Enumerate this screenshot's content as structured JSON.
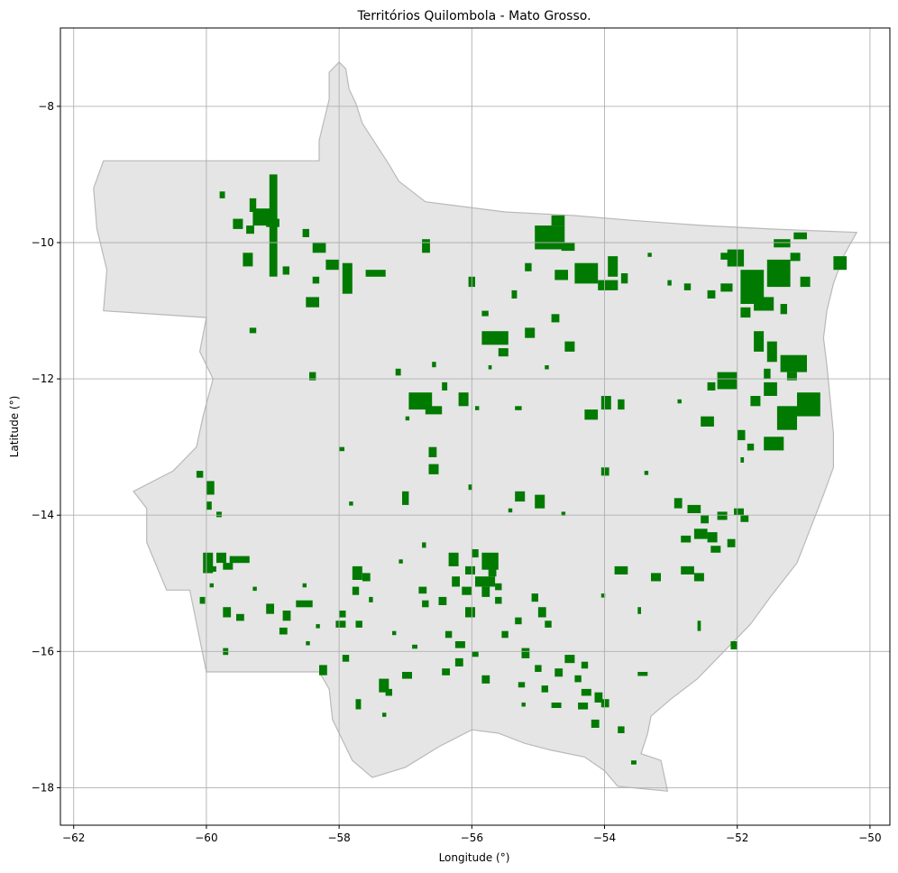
{
  "chart_data": {
    "type": "map",
    "title": "Territórios Quilombola - Mato Grosso.",
    "xlabel": "Longitude (°)",
    "ylabel": "Latitude (°)",
    "xlim": [
      -62.2,
      -49.7
    ],
    "ylim": [
      -18.55,
      -6.85
    ],
    "x_ticks": [
      -62,
      -60,
      -58,
      -56,
      -54,
      -52,
      -50
    ],
    "y_ticks": [
      -8,
      -10,
      -12,
      -14,
      -16,
      -18
    ],
    "x_tick_labels": [
      "−62",
      "−60",
      "−58",
      "−56",
      "−54",
      "−52",
      "−50"
    ],
    "y_tick_labels": [
      "−8",
      "−10",
      "−12",
      "−14",
      "−16",
      "−18"
    ],
    "grid": true,
    "colors": {
      "state_fill": "#e5e5e5",
      "state_edge": "#b9b9b9",
      "territory_fill": "#007a00",
      "grid": "#b0b0b0"
    },
    "state_boundary": [
      [
        -58.0,
        -7.35
      ],
      [
        -57.9,
        -7.45
      ],
      [
        -57.85,
        -7.75
      ],
      [
        -57.75,
        -7.95
      ],
      [
        -57.65,
        -8.25
      ],
      [
        -57.45,
        -8.55
      ],
      [
        -57.25,
        -8.85
      ],
      [
        -57.1,
        -9.1
      ],
      [
        -56.9,
        -9.25
      ],
      [
        -56.7,
        -9.4
      ],
      [
        -55.5,
        -9.55
      ],
      [
        -54.5,
        -9.6
      ],
      [
        -53.5,
        -9.68
      ],
      [
        -52.5,
        -9.75
      ],
      [
        -51.5,
        -9.8
      ],
      [
        -50.2,
        -9.85
      ],
      [
        -50.4,
        -10.2
      ],
      [
        -50.55,
        -10.6
      ],
      [
        -50.65,
        -11.0
      ],
      [
        -50.7,
        -11.4
      ],
      [
        -50.65,
        -11.8
      ],
      [
        -50.6,
        -12.3
      ],
      [
        -50.55,
        -12.8
      ],
      [
        -50.55,
        -13.3
      ],
      [
        -50.7,
        -13.7
      ],
      [
        -50.9,
        -14.2
      ],
      [
        -51.1,
        -14.7
      ],
      [
        -51.5,
        -15.2
      ],
      [
        -51.8,
        -15.6
      ],
      [
        -52.2,
        -16.0
      ],
      [
        -52.6,
        -16.4
      ],
      [
        -53.0,
        -16.7
      ],
      [
        -53.3,
        -16.95
      ],
      [
        -53.35,
        -17.2
      ],
      [
        -53.45,
        -17.5
      ],
      [
        -53.15,
        -17.6
      ],
      [
        -53.05,
        -18.05
      ],
      [
        -53.8,
        -17.98
      ],
      [
        -54.0,
        -17.75
      ],
      [
        -54.3,
        -17.55
      ],
      [
        -54.8,
        -17.45
      ],
      [
        -55.2,
        -17.35
      ],
      [
        -55.6,
        -17.2
      ],
      [
        -56.0,
        -17.15
      ],
      [
        -56.5,
        -17.4
      ],
      [
        -57.0,
        -17.7
      ],
      [
        -57.5,
        -17.85
      ],
      [
        -57.8,
        -17.6
      ],
      [
        -57.95,
        -17.3
      ],
      [
        -58.1,
        -17.0
      ],
      [
        -58.15,
        -16.55
      ],
      [
        -58.3,
        -16.3
      ],
      [
        -60.0,
        -16.3
      ],
      [
        -60.25,
        -15.1
      ],
      [
        -60.6,
        -15.1
      ],
      [
        -60.9,
        -14.4
      ],
      [
        -60.9,
        -13.9
      ],
      [
        -61.1,
        -13.65
      ],
      [
        -60.5,
        -13.35
      ],
      [
        -60.15,
        -13.0
      ],
      [
        -60.05,
        -12.55
      ],
      [
        -59.9,
        -12.0
      ],
      [
        -60.1,
        -11.6
      ],
      [
        -60.0,
        -11.1
      ],
      [
        -61.55,
        -11.0
      ],
      [
        -61.5,
        -10.4
      ],
      [
        -61.65,
        -9.8
      ],
      [
        -61.7,
        -9.2
      ],
      [
        -61.55,
        -8.8
      ],
      [
        -58.3,
        -8.8
      ],
      [
        -58.3,
        -8.5
      ],
      [
        -58.15,
        -7.9
      ],
      [
        -58.15,
        -7.5
      ]
    ],
    "territories": [
      [
        -59.05,
        -9.0,
        0.12,
        1.5
      ],
      [
        -59.3,
        -9.5,
        0.3,
        0.25
      ],
      [
        -59.6,
        -9.65,
        0.15,
        0.15
      ],
      [
        -59.4,
        -9.75,
        0.12,
        0.12
      ],
      [
        -59.8,
        -9.25,
        0.08,
        0.1
      ],
      [
        -59.35,
        -9.35,
        0.1,
        0.2
      ],
      [
        -59.1,
        -9.65,
        0.2,
        0.12
      ],
      [
        -59.45,
        -10.15,
        0.15,
        0.2
      ],
      [
        -58.4,
        -10.0,
        0.2,
        0.15
      ],
      [
        -58.55,
        -9.8,
        0.1,
        0.12
      ],
      [
        -57.95,
        -10.3,
        0.15,
        0.45
      ],
      [
        -58.2,
        -10.25,
        0.2,
        0.15
      ],
      [
        -57.6,
        -10.4,
        0.3,
        0.1
      ],
      [
        -58.85,
        -10.35,
        0.1,
        0.12
      ],
      [
        -58.4,
        -10.5,
        0.1,
        0.1
      ],
      [
        -58.5,
        -10.8,
        0.2,
        0.15
      ],
      [
        -59.35,
        -11.25,
        0.1,
        0.08
      ],
      [
        -58.45,
        -11.9,
        0.1,
        0.12
      ],
      [
        -57.15,
        -11.85,
        0.08,
        0.1
      ],
      [
        -55.85,
        -11.3,
        0.4,
        0.2
      ],
      [
        -55.6,
        -11.55,
        0.15,
        0.12
      ],
      [
        -55.85,
        -11.0,
        0.1,
        0.08
      ],
      [
        -56.05,
        -10.5,
        0.1,
        0.15
      ],
      [
        -56.75,
        -9.95,
        0.12,
        0.2
      ],
      [
        -55.05,
        -9.75,
        0.45,
        0.35
      ],
      [
        -54.8,
        -9.6,
        0.2,
        0.15
      ],
      [
        -54.45,
        -10.3,
        0.35,
        0.3
      ],
      [
        -54.1,
        -10.55,
        0.3,
        0.15
      ],
      [
        -54.75,
        -10.4,
        0.2,
        0.15
      ],
      [
        -55.2,
        -10.3,
        0.1,
        0.12
      ],
      [
        -55.4,
        -10.7,
        0.08,
        0.12
      ],
      [
        -54.65,
        -10.0,
        0.2,
        0.12
      ],
      [
        -53.95,
        -10.2,
        0.15,
        0.3
      ],
      [
        -53.75,
        -10.45,
        0.1,
        0.15
      ],
      [
        -55.2,
        -11.25,
        0.15,
        0.15
      ],
      [
        -54.8,
        -11.05,
        0.12,
        0.12
      ],
      [
        -54.6,
        -11.45,
        0.15,
        0.15
      ],
      [
        -54.05,
        -12.25,
        0.15,
        0.2
      ],
      [
        -54.3,
        -12.45,
        0.2,
        0.15
      ],
      [
        -53.8,
        -12.3,
        0.1,
        0.15
      ],
      [
        -56.95,
        -12.2,
        0.35,
        0.25
      ],
      [
        -56.7,
        -12.4,
        0.25,
        0.12
      ],
      [
        -56.2,
        -12.2,
        0.15,
        0.2
      ],
      [
        -56.45,
        -12.05,
        0.08,
        0.12
      ],
      [
        -55.35,
        -12.4,
        0.1,
        0.06
      ],
      [
        -56.65,
        -13.0,
        0.12,
        0.15
      ],
      [
        -56.65,
        -13.25,
        0.15,
        0.15
      ],
      [
        -57.05,
        -13.65,
        0.1,
        0.2
      ],
      [
        -55.35,
        -13.65,
        0.15,
        0.15
      ],
      [
        -55.05,
        -13.7,
        0.15,
        0.2
      ],
      [
        -54.05,
        -13.3,
        0.12,
        0.12
      ],
      [
        -52.8,
        -10.6,
        0.1,
        0.1
      ],
      [
        -52.45,
        -10.7,
        0.12,
        0.12
      ],
      [
        -52.25,
        -10.15,
        0.15,
        0.1
      ],
      [
        -52.25,
        -10.6,
        0.18,
        0.12
      ],
      [
        -52.15,
        -10.1,
        0.25,
        0.25
      ],
      [
        -51.95,
        -10.4,
        0.35,
        0.5
      ],
      [
        -51.55,
        -10.25,
        0.35,
        0.4
      ],
      [
        -51.75,
        -10.8,
        0.3,
        0.2
      ],
      [
        -51.95,
        -10.95,
        0.15,
        0.15
      ],
      [
        -51.75,
        -11.3,
        0.15,
        0.3
      ],
      [
        -51.35,
        -10.9,
        0.1,
        0.15
      ],
      [
        -51.45,
        -9.95,
        0.25,
        0.12
      ],
      [
        -51.15,
        -9.85,
        0.2,
        0.1
      ],
      [
        -50.55,
        -10.2,
        0.2,
        0.2
      ],
      [
        -51.05,
        -10.5,
        0.15,
        0.15
      ],
      [
        -51.2,
        -10.15,
        0.15,
        0.12
      ],
      [
        -52.3,
        -11.9,
        0.3,
        0.25
      ],
      [
        -52.45,
        -12.05,
        0.12,
        0.12
      ],
      [
        -52.55,
        -12.55,
        0.2,
        0.15
      ],
      [
        -51.55,
        -11.45,
        0.15,
        0.3
      ],
      [
        -51.35,
        -11.65,
        0.4,
        0.25
      ],
      [
        -51.6,
        -11.85,
        0.1,
        0.15
      ],
      [
        -51.25,
        -11.9,
        0.15,
        0.12
      ],
      [
        -51.6,
        -12.05,
        0.2,
        0.2
      ],
      [
        -51.4,
        -12.4,
        0.3,
        0.35
      ],
      [
        -51.1,
        -12.2,
        0.35,
        0.35
      ],
      [
        -51.8,
        -12.25,
        0.15,
        0.15
      ],
      [
        -52.0,
        -12.75,
        0.12,
        0.15
      ],
      [
        -51.6,
        -12.85,
        0.3,
        0.2
      ],
      [
        -51.85,
        -12.95,
        0.1,
        0.1
      ],
      [
        -51.95,
        -13.15,
        0.05,
        0.08
      ],
      [
        -60.0,
        -13.5,
        0.12,
        0.2
      ],
      [
        -60.15,
        -13.35,
        0.1,
        0.1
      ],
      [
        -60.0,
        -13.8,
        0.08,
        0.12
      ],
      [
        -59.85,
        -13.95,
        0.08,
        0.08
      ],
      [
        -59.85,
        -14.55,
        0.15,
        0.15
      ],
      [
        -59.65,
        -14.6,
        0.3,
        0.1
      ],
      [
        -60.05,
        -14.55,
        0.15,
        0.3
      ],
      [
        -60.0,
        -14.75,
        0.15,
        0.08
      ],
      [
        -59.75,
        -14.7,
        0.15,
        0.1
      ],
      [
        -60.1,
        -15.2,
        0.08,
        0.1
      ],
      [
        -59.75,
        -15.35,
        0.12,
        0.15
      ],
      [
        -59.55,
        -15.45,
        0.12,
        0.1
      ],
      [
        -59.75,
        -15.95,
        0.08,
        0.1
      ],
      [
        -59.1,
        -15.3,
        0.12,
        0.15
      ],
      [
        -58.85,
        -15.4,
        0.12,
        0.15
      ],
      [
        -58.65,
        -15.25,
        0.25,
        0.1
      ],
      [
        -58.9,
        -15.65,
        0.12,
        0.1
      ],
      [
        -58.0,
        -15.4,
        0.1,
        0.1
      ],
      [
        -58.05,
        -15.55,
        0.15,
        0.1
      ],
      [
        -57.8,
        -14.75,
        0.15,
        0.2
      ],
      [
        -57.65,
        -14.85,
        0.12,
        0.12
      ],
      [
        -57.8,
        -15.05,
        0.1,
        0.12
      ],
      [
        -57.75,
        -15.55,
        0.1,
        0.1
      ],
      [
        -57.95,
        -16.05,
        0.1,
        0.1
      ],
      [
        -58.3,
        -16.2,
        0.12,
        0.15
      ],
      [
        -57.75,
        -16.7,
        0.08,
        0.15
      ],
      [
        -57.4,
        -16.4,
        0.15,
        0.2
      ],
      [
        -57.3,
        -16.55,
        0.1,
        0.1
      ],
      [
        -57.05,
        -16.3,
        0.15,
        0.1
      ],
      [
        -56.8,
        -15.05,
        0.12,
        0.1
      ],
      [
        -56.35,
        -14.55,
        0.15,
        0.2
      ],
      [
        -56.0,
        -14.5,
        0.1,
        0.12
      ],
      [
        -55.85,
        -14.55,
        0.25,
        0.25
      ],
      [
        -56.1,
        -14.75,
        0.15,
        0.12
      ],
      [
        -56.3,
        -14.9,
        0.12,
        0.15
      ],
      [
        -55.95,
        -14.9,
        0.3,
        0.15
      ],
      [
        -56.15,
        -15.05,
        0.15,
        0.12
      ],
      [
        -56.1,
        -15.35,
        0.15,
        0.15
      ],
      [
        -56.5,
        -15.2,
        0.12,
        0.12
      ],
      [
        -56.75,
        -15.25,
        0.1,
        0.1
      ],
      [
        -55.85,
        -15.05,
        0.12,
        0.15
      ],
      [
        -55.65,
        -15.0,
        0.1,
        0.1
      ],
      [
        -55.65,
        -15.2,
        0.1,
        0.1
      ],
      [
        -55.75,
        -14.75,
        0.12,
        0.15
      ],
      [
        -56.4,
        -15.7,
        0.1,
        0.1
      ],
      [
        -56.25,
        -15.85,
        0.15,
        0.1
      ],
      [
        -56.25,
        -16.1,
        0.12,
        0.12
      ],
      [
        -56.0,
        -16.0,
        0.1,
        0.08
      ],
      [
        -55.85,
        -16.35,
        0.12,
        0.12
      ],
      [
        -56.45,
        -16.25,
        0.12,
        0.1
      ],
      [
        -55.1,
        -15.15,
        0.1,
        0.12
      ],
      [
        -55.0,
        -15.35,
        0.12,
        0.15
      ],
      [
        -54.9,
        -15.55,
        0.1,
        0.1
      ],
      [
        -55.35,
        -15.5,
        0.1,
        0.1
      ],
      [
        -55.55,
        -15.7,
        0.1,
        0.1
      ],
      [
        -55.25,
        -15.95,
        0.12,
        0.15
      ],
      [
        -55.05,
        -16.2,
        0.1,
        0.1
      ],
      [
        -54.75,
        -16.25,
        0.12,
        0.12
      ],
      [
        -54.6,
        -16.05,
        0.15,
        0.12
      ],
      [
        -54.35,
        -16.15,
        0.1,
        0.1
      ],
      [
        -54.45,
        -16.35,
        0.1,
        0.1
      ],
      [
        -54.35,
        -16.55,
        0.15,
        0.1
      ],
      [
        -54.15,
        -16.6,
        0.12,
        0.15
      ],
      [
        -54.4,
        -16.75,
        0.15,
        0.1
      ],
      [
        -54.8,
        -16.75,
        0.15,
        0.08
      ],
      [
        -54.05,
        -16.7,
        0.12,
        0.12
      ],
      [
        -54.2,
        -17.0,
        0.12,
        0.12
      ],
      [
        -53.8,
        -17.1,
        0.1,
        0.1
      ],
      [
        -54.95,
        -16.5,
        0.1,
        0.1
      ],
      [
        -55.3,
        -16.45,
        0.1,
        0.08
      ],
      [
        -53.5,
        -16.3,
        0.15,
        0.06
      ],
      [
        -53.85,
        -14.75,
        0.2,
        0.12
      ],
      [
        -53.3,
        -14.85,
        0.15,
        0.12
      ],
      [
        -52.85,
        -14.75,
        0.2,
        0.12
      ],
      [
        -52.65,
        -14.85,
        0.15,
        0.12
      ],
      [
        -52.95,
        -13.75,
        0.12,
        0.15
      ],
      [
        -52.75,
        -13.85,
        0.2,
        0.12
      ],
      [
        -52.55,
        -14.0,
        0.12,
        0.12
      ],
      [
        -52.65,
        -14.2,
        0.2,
        0.15
      ],
      [
        -52.85,
        -14.3,
        0.15,
        0.1
      ],
      [
        -52.45,
        -14.25,
        0.15,
        0.15
      ],
      [
        -52.4,
        -14.45,
        0.15,
        0.1
      ],
      [
        -52.15,
        -14.35,
        0.12,
        0.12
      ],
      [
        -52.3,
        -13.95,
        0.15,
        0.12
      ],
      [
        -52.05,
        -13.9,
        0.15,
        0.1
      ],
      [
        -51.95,
        -14.0,
        0.12,
        0.1
      ],
      [
        -52.6,
        -15.55,
        0.05,
        0.15
      ],
      [
        -52.1,
        -15.85,
        0.1,
        0.12
      ],
      [
        -53.5,
        -15.35,
        0.05,
        0.1
      ],
      [
        -54.9,
        -11.8,
        0.06,
        0.06
      ],
      [
        -55.75,
        -11.8,
        0.05,
        0.06
      ],
      [
        -55.95,
        -12.4,
        0.06,
        0.06
      ],
      [
        -56.6,
        -11.75,
        0.06,
        0.08
      ],
      [
        -57.0,
        -12.55,
        0.06,
        0.06
      ],
      [
        -58.0,
        -13.0,
        0.08,
        0.06
      ],
      [
        -57.85,
        -13.8,
        0.06,
        0.06
      ],
      [
        -56.05,
        -13.55,
        0.06,
        0.08
      ],
      [
        -55.45,
        -13.9,
        0.06,
        0.06
      ],
      [
        -54.65,
        -13.95,
        0.06,
        0.06
      ],
      [
        -53.4,
        -13.35,
        0.06,
        0.06
      ],
      [
        -52.9,
        -12.3,
        0.06,
        0.06
      ],
      [
        -53.05,
        -10.55,
        0.06,
        0.08
      ],
      [
        -53.35,
        -10.15,
        0.06,
        0.06
      ],
      [
        -56.75,
        -14.4,
        0.06,
        0.08
      ],
      [
        -57.1,
        -14.65,
        0.06,
        0.06
      ],
      [
        -57.55,
        -15.2,
        0.06,
        0.08
      ],
      [
        -58.35,
        -15.6,
        0.06,
        0.06
      ],
      [
        -58.5,
        -15.85,
        0.06,
        0.06
      ],
      [
        -57.2,
        -15.7,
        0.06,
        0.06
      ],
      [
        -56.9,
        -15.9,
        0.08,
        0.06
      ],
      [
        -55.25,
        -16.75,
        0.06,
        0.06
      ],
      [
        -53.6,
        -17.6,
        0.08,
        0.06
      ],
      [
        -54.05,
        -15.15,
        0.06,
        0.06
      ],
      [
        -59.95,
        -15.0,
        0.06,
        0.06
      ],
      [
        -59.3,
        -15.05,
        0.06,
        0.06
      ],
      [
        -58.55,
        -15.0,
        0.06,
        0.06
      ],
      [
        -57.35,
        -16.9,
        0.06,
        0.06
      ]
    ]
  }
}
